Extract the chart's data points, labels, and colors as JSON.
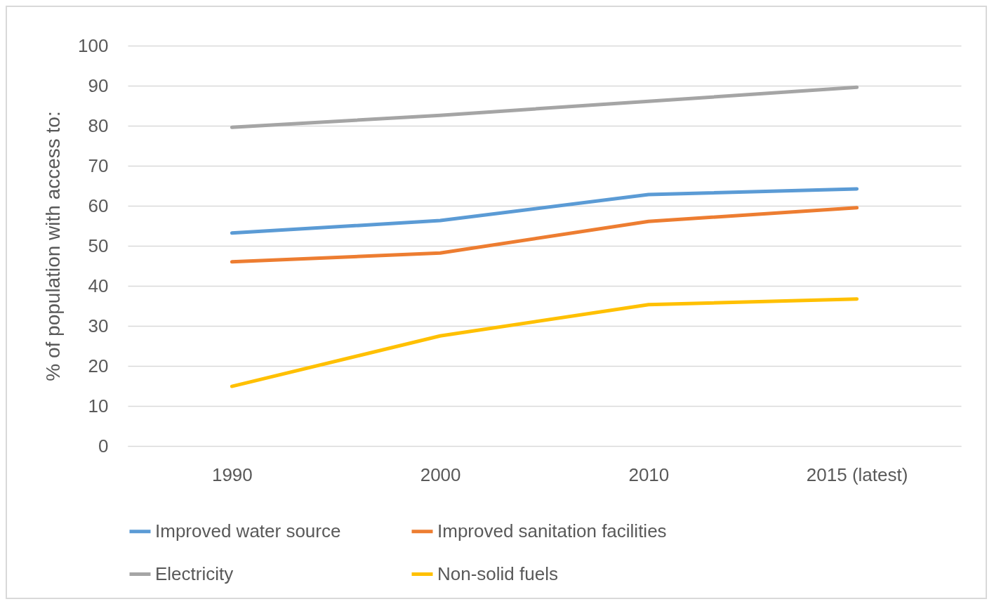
{
  "chart_data": {
    "type": "line",
    "ylabel": "% of population with access to:",
    "categories": [
      "1990",
      "2000",
      "2010",
      "2015 (latest)"
    ],
    "series": [
      {
        "name": "Improved water source",
        "color": "#5b9bd5",
        "values": [
          53.2,
          56.3,
          62.8,
          64.2
        ]
      },
      {
        "name": "Improved sanitation facilities",
        "color": "#ed7d31",
        "values": [
          46,
          48.2,
          56.1,
          59.5
        ]
      },
      {
        "name": "Electricity",
        "color": "#a5a5a5",
        "values": [
          79.6,
          82.6,
          86.1,
          89.6
        ]
      },
      {
        "name": "Non-solid fuels",
        "color": "#ffc000",
        "values": [
          14.9,
          27.5,
          35.3,
          36.7
        ]
      }
    ],
    "ylim": [
      0,
      100
    ],
    "yticks": [
      0,
      10,
      20,
      30,
      40,
      50,
      60,
      70,
      80,
      90,
      100
    ],
    "grid": "y",
    "legend": "bottom",
    "marker": "none",
    "line_style": "solid"
  }
}
